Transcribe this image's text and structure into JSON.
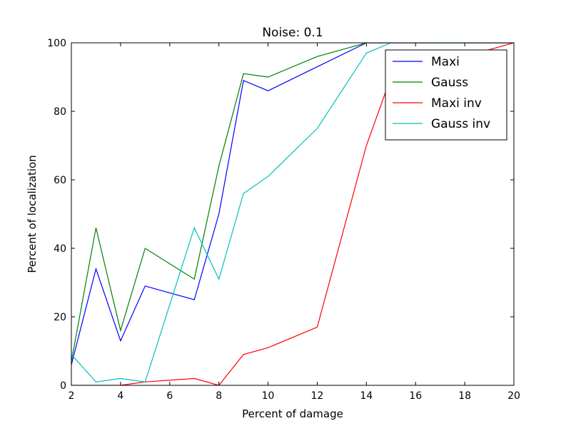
{
  "chart_data": {
    "type": "line",
    "title": "Noise: 0.1",
    "xlabel": "Percent of damage",
    "ylabel": "Percent of localization",
    "xlim": [
      2,
      20
    ],
    "ylim": [
      0,
      100
    ],
    "xticks": [
      2,
      4,
      6,
      8,
      10,
      12,
      14,
      16,
      18,
      20
    ],
    "yticks": [
      0,
      20,
      40,
      60,
      80,
      100
    ],
    "grid": false,
    "legend_position": "top-right",
    "series": [
      {
        "name": "Maxi",
        "color": "#0000ff",
        "x": [
          2,
          3,
          4,
          5,
          7,
          8,
          9,
          10,
          12,
          14,
          15,
          20
        ],
        "y": [
          6,
          34,
          13,
          29,
          25,
          50,
          89,
          86,
          93,
          100,
          100,
          100
        ]
      },
      {
        "name": "Gauss",
        "color": "#008000",
        "x": [
          2,
          3,
          4,
          5,
          7,
          8,
          9,
          10,
          12,
          14,
          15,
          20
        ],
        "y": [
          7,
          46,
          16,
          40,
          31,
          64,
          91,
          90,
          96,
          100,
          100,
          100
        ]
      },
      {
        "name": "Maxi inv",
        "color": "#ff0000",
        "x": [
          2,
          3,
          4,
          5,
          7,
          8,
          9,
          10,
          12,
          14,
          15,
          16,
          18,
          20
        ],
        "y": [
          0,
          0,
          0,
          1,
          2,
          0,
          9,
          11,
          17,
          70,
          90,
          93,
          96,
          100
        ]
      },
      {
        "name": "Gauss inv",
        "color": "#00bfbf",
        "x": [
          2,
          3,
          4,
          5,
          7,
          8,
          9,
          10,
          12,
          14,
          15,
          20
        ],
        "y": [
          9,
          1,
          2,
          1,
          46,
          31,
          56,
          61,
          75,
          97,
          100,
          100
        ]
      }
    ]
  }
}
